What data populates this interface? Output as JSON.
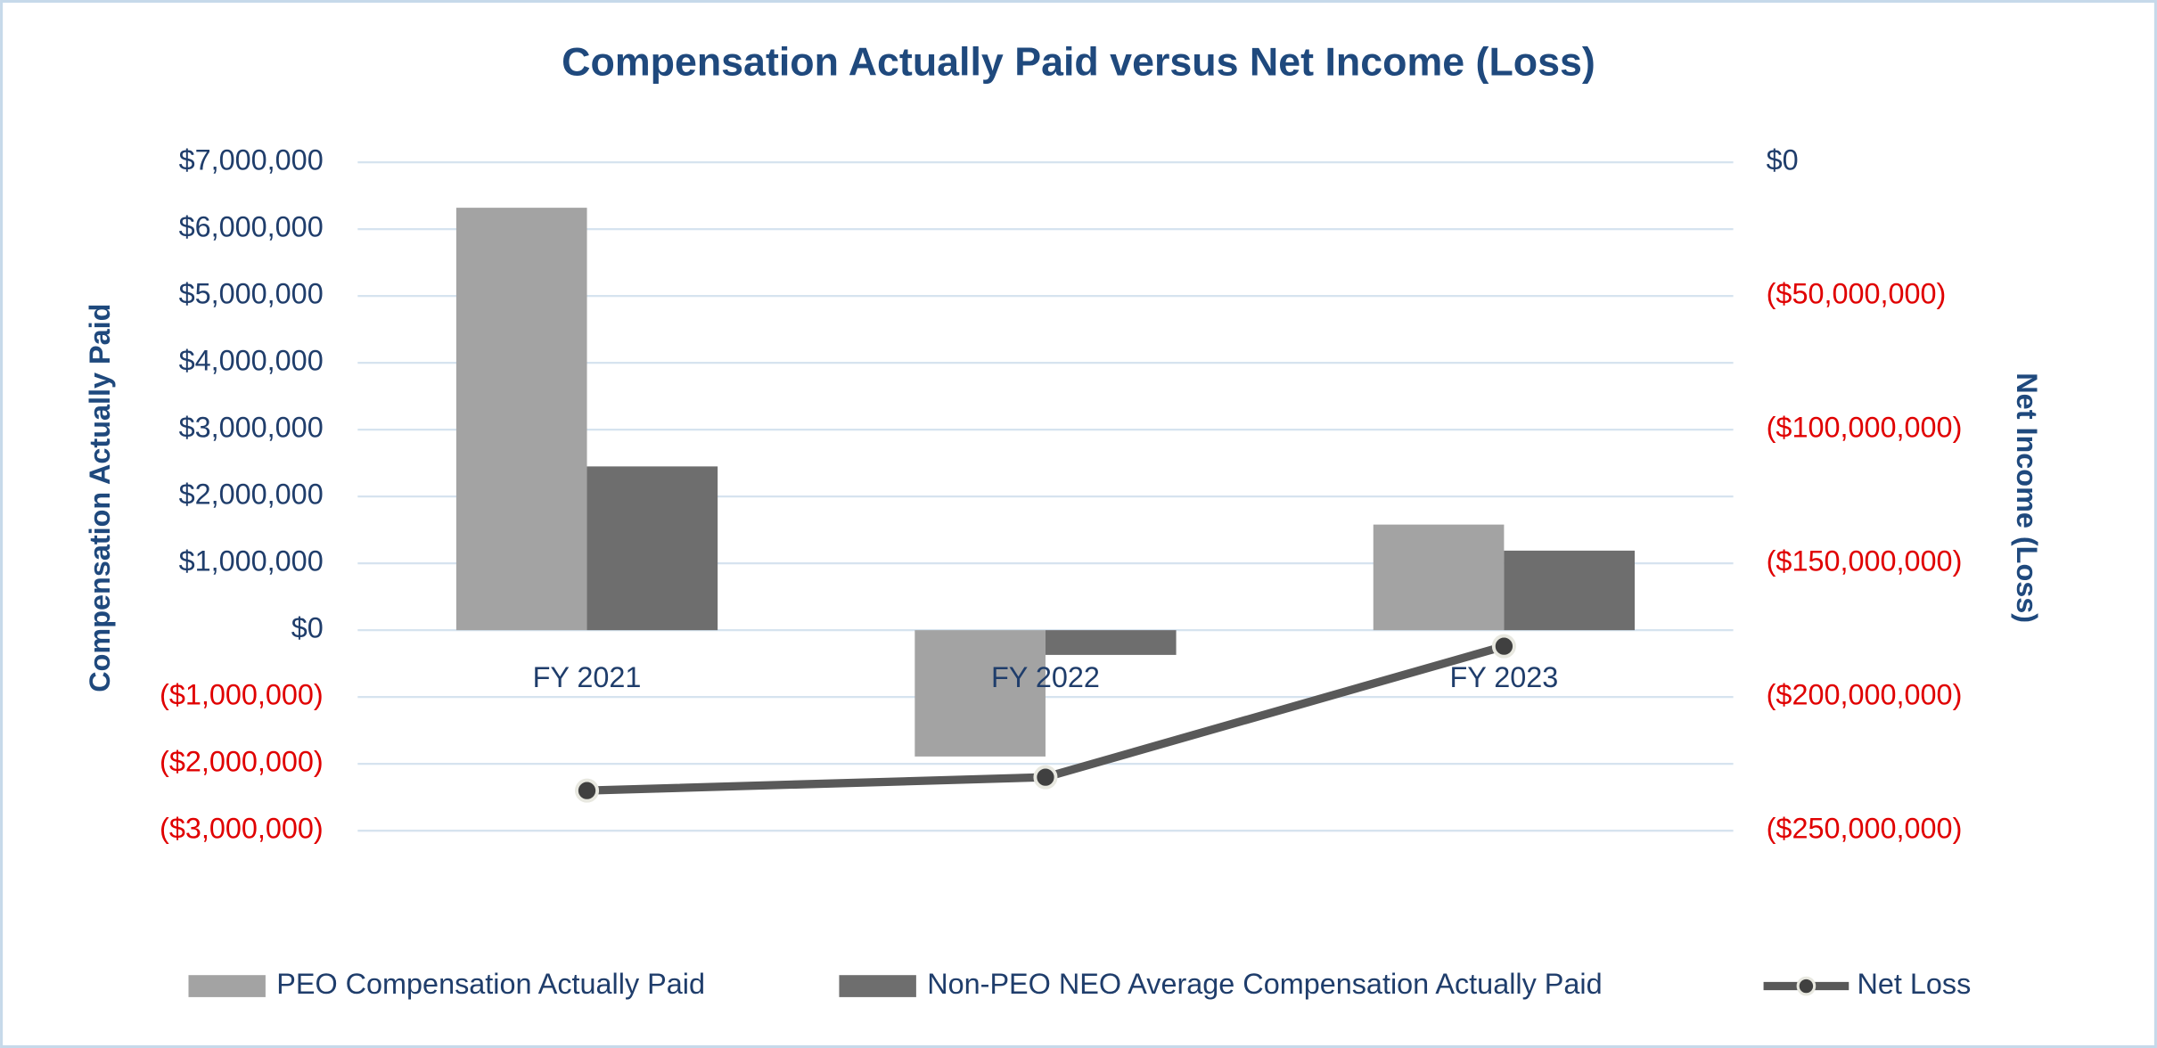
{
  "chart_data": {
    "type": "bar",
    "title": "Compensation Actually Paid versus Net Income (Loss)",
    "y_label": "Compensation Actually Paid",
    "y2_label": "Net Income (Loss)",
    "categories": [
      "FY 2021",
      "FY 2022",
      "FY 2023"
    ],
    "series": [
      {
        "name": "PEO Compensation Actually Paid",
        "color": "#a3a3a3",
        "values": [
          6320000,
          -1890000,
          1580000
        ]
      },
      {
        "name": "Non-PEO NEO Average Compensation Actually Paid",
        "color": "#6e6e6e",
        "values": [
          2450000,
          -370000,
          1190000
        ]
      },
      {
        "name": "Net Loss",
        "type": "line",
        "axis": "y2",
        "color": "#595959",
        "values": [
          -235000000,
          -230000000,
          -181000000
        ]
      }
    ],
    "ylim": [
      -3000000,
      7000000
    ],
    "yticks": [
      {
        "value": -3000000,
        "label": "($3,000,000)"
      },
      {
        "value": -2000000,
        "label": "($2,000,000)"
      },
      {
        "value": -1000000,
        "label": "($1,000,000)"
      },
      {
        "value": 0,
        "label": "$0"
      },
      {
        "value": 1000000,
        "label": "$1,000,000"
      },
      {
        "value": 2000000,
        "label": "$2,000,000"
      },
      {
        "value": 3000000,
        "label": "$3,000,000"
      },
      {
        "value": 4000000,
        "label": "$4,000,000"
      },
      {
        "value": 5000000,
        "label": "$5,000,000"
      },
      {
        "value": 6000000,
        "label": "$6,000,000"
      },
      {
        "value": 7000000,
        "label": "$7,000,000"
      }
    ],
    "y2lim": [
      -250000000,
      0
    ],
    "y2ticks": [
      {
        "value": -250000000,
        "label": "($250,000,000)"
      },
      {
        "value": -200000000,
        "label": "($200,000,000)"
      },
      {
        "value": -150000000,
        "label": "($150,000,000)"
      },
      {
        "value": -100000000,
        "label": "($100,000,000)"
      },
      {
        "value": -50000000,
        "label": "($50,000,000)"
      },
      {
        "value": 0,
        "label": "$0"
      }
    ],
    "grid": true,
    "legend": "bottom"
  }
}
